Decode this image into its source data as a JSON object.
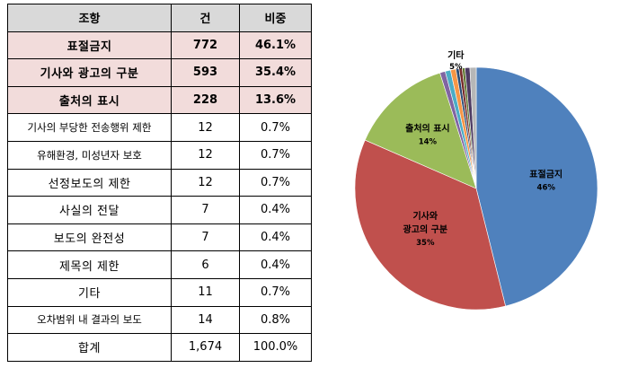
{
  "table": {
    "headers": [
      "조항",
      "건",
      "비중"
    ],
    "rows": [
      {
        "clause": "표절금지",
        "count": "772",
        "share": "46.1%",
        "highlight": true
      },
      {
        "clause": "기사와 광고의 구분",
        "count": "593",
        "share": "35.4%",
        "highlight": true
      },
      {
        "clause": "출처의 표시",
        "count": "228",
        "share": "13.6%",
        "highlight": true
      },
      {
        "clause": "기사의 부당한 전송행위 제한",
        "count": "12",
        "share": "0.7%",
        "highlight": false
      },
      {
        "clause": "유해환경, 미성년자 보호",
        "count": "12",
        "share": "0.7%",
        "highlight": false
      },
      {
        "clause": "선정보도의 제한",
        "count": "12",
        "share": "0.7%",
        "highlight": false
      },
      {
        "clause": "사실의 전달",
        "count": "7",
        "share": "0.4%",
        "highlight": false
      },
      {
        "clause": "보도의 완전성",
        "count": "7",
        "share": "0.4%",
        "highlight": false
      },
      {
        "clause": "제목의 제한",
        "count": "6",
        "share": "0.4%",
        "highlight": false
      },
      {
        "clause": "기타",
        "count": "11",
        "share": "0.7%",
        "highlight": false
      },
      {
        "clause": "오차범위 내 결과의 보도",
        "count": "14",
        "share": "0.8%",
        "highlight": false
      },
      {
        "clause": "합계",
        "count": "1,674",
        "share": "100.0%",
        "highlight": false
      }
    ]
  },
  "chart_data": {
    "type": "pie",
    "slices": [
      {
        "label": "표절금지",
        "value": 772,
        "pct_label": "46%",
        "color": "#4f81bd"
      },
      {
        "label": "기사와 광고의 구분",
        "value": 593,
        "pct_label": "35%",
        "color": "#c0504d"
      },
      {
        "label": "출처의 표시",
        "value": 228,
        "pct_label": "14%",
        "color": "#9bbb59"
      },
      {
        "label": "",
        "value": 12,
        "pct_label": "",
        "color": "#8064a2"
      },
      {
        "label": "",
        "value": 12,
        "pct_label": "",
        "color": "#4bacc6"
      },
      {
        "label": "",
        "value": 12,
        "pct_label": "",
        "color": "#f79646"
      },
      {
        "label": "",
        "value": 7,
        "pct_label": "",
        "color": "#2c4d75"
      },
      {
        "label": "",
        "value": 7,
        "pct_label": "",
        "color": "#772c2a"
      },
      {
        "label": "",
        "value": 6,
        "pct_label": "",
        "color": "#5f7530"
      },
      {
        "label": "",
        "value": 11,
        "pct_label": "",
        "color": "#4d3b62"
      },
      {
        "label": "",
        "value": 14,
        "pct_label": "",
        "color": "#b7b7b7"
      }
    ],
    "callout": {
      "label": "기타",
      "pct_label": "5%"
    }
  }
}
